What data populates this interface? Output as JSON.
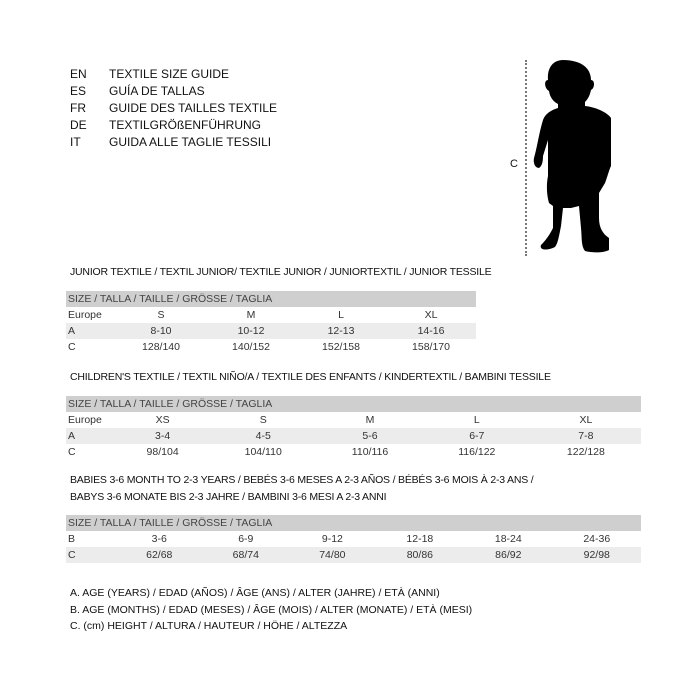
{
  "languages": [
    {
      "code": "EN",
      "text": "TEXTILE SIZE GUIDE"
    },
    {
      "code": "ES",
      "text": "GUÍA DE TALLAS"
    },
    {
      "code": "FR",
      "text": "GUIDE DES TAILLES TEXTILE"
    },
    {
      "code": "DE",
      "text": "TEXTILGRÖßENFÜHRUNG"
    },
    {
      "code": "IT",
      "text": "GUIDA ALLE TAGLIE TESSILI"
    }
  ],
  "figure": {
    "measure_label": "C"
  },
  "junior": {
    "title": "JUNIOR TEXTILE / TEXTIL JUNIOR/ TEXTILE JUNIOR / JUNIORTEXTIL / JUNIOR TESSILE",
    "header": "SIZE / TALLA / TAILLE / GRÖSSE / TAGLIA",
    "rows": [
      {
        "label": "Europe",
        "values": [
          "S",
          "M",
          "L",
          "XL"
        ]
      },
      {
        "label": "A",
        "values": [
          "8-10",
          "10-12",
          "12-13",
          "14-16"
        ]
      },
      {
        "label": "C",
        "values": [
          "128/140",
          "140/152",
          "152/158",
          "158/170"
        ]
      }
    ]
  },
  "children": {
    "title": "CHILDREN'S TEXTILE / TEXTIL NIÑO/A / TEXTILE DES ENFANTS / KINDERTEXTIL / BAMBINI TESSILE",
    "header": "SIZE / TALLA / TAILLE / GRÖSSE / TAGLIA",
    "rows": [
      {
        "label": "Europe",
        "values": [
          "XS",
          "S",
          "M",
          "L",
          "XL"
        ]
      },
      {
        "label": "A",
        "values": [
          "3-4",
          "4-5",
          "5-6",
          "6-7",
          "7-8"
        ]
      },
      {
        "label": "C",
        "values": [
          "98/104",
          "104/110",
          "110/116",
          "116/122",
          "122/128"
        ]
      }
    ]
  },
  "babies": {
    "title_line1": "BABIES 3-6 MONTH TO 2-3 YEARS / BEBÉS 3-6 MESES A 2-3 AÑOS / BÉBÉS 3-6 MOIS À 2-3 ANS /",
    "title_line2": "BABYS 3-6 MONATE BIS 2-3 JAHRE / BAMBINI 3-6 MESI A 2-3 ANNI",
    "header": "SIZE / TALLA / TAILLE / GRÖSSE / TAGLIA",
    "rows": [
      {
        "label": "B",
        "values": [
          "3-6",
          "6-9",
          "9-12",
          "12-18",
          "18-24",
          "24-36"
        ]
      },
      {
        "label": "C",
        "values": [
          "62/68",
          "68/74",
          "74/80",
          "80/86",
          "86/92",
          "92/98"
        ]
      }
    ]
  },
  "legend": [
    "A. AGE (YEARS) / EDAD (AÑOS) / ÂGE (ANS) / ALTER (JAHRE) / ETÀ (ANNI)",
    "B. AGE (MONTHS) / EDAD (MESES) / ÂGE (MOIS) / ALTER (MONATE) / ETÀ (MESI)",
    "C. (cm) HEIGHT / ALTURA / HAUTEUR / HÖHE / ALTEZZA"
  ]
}
